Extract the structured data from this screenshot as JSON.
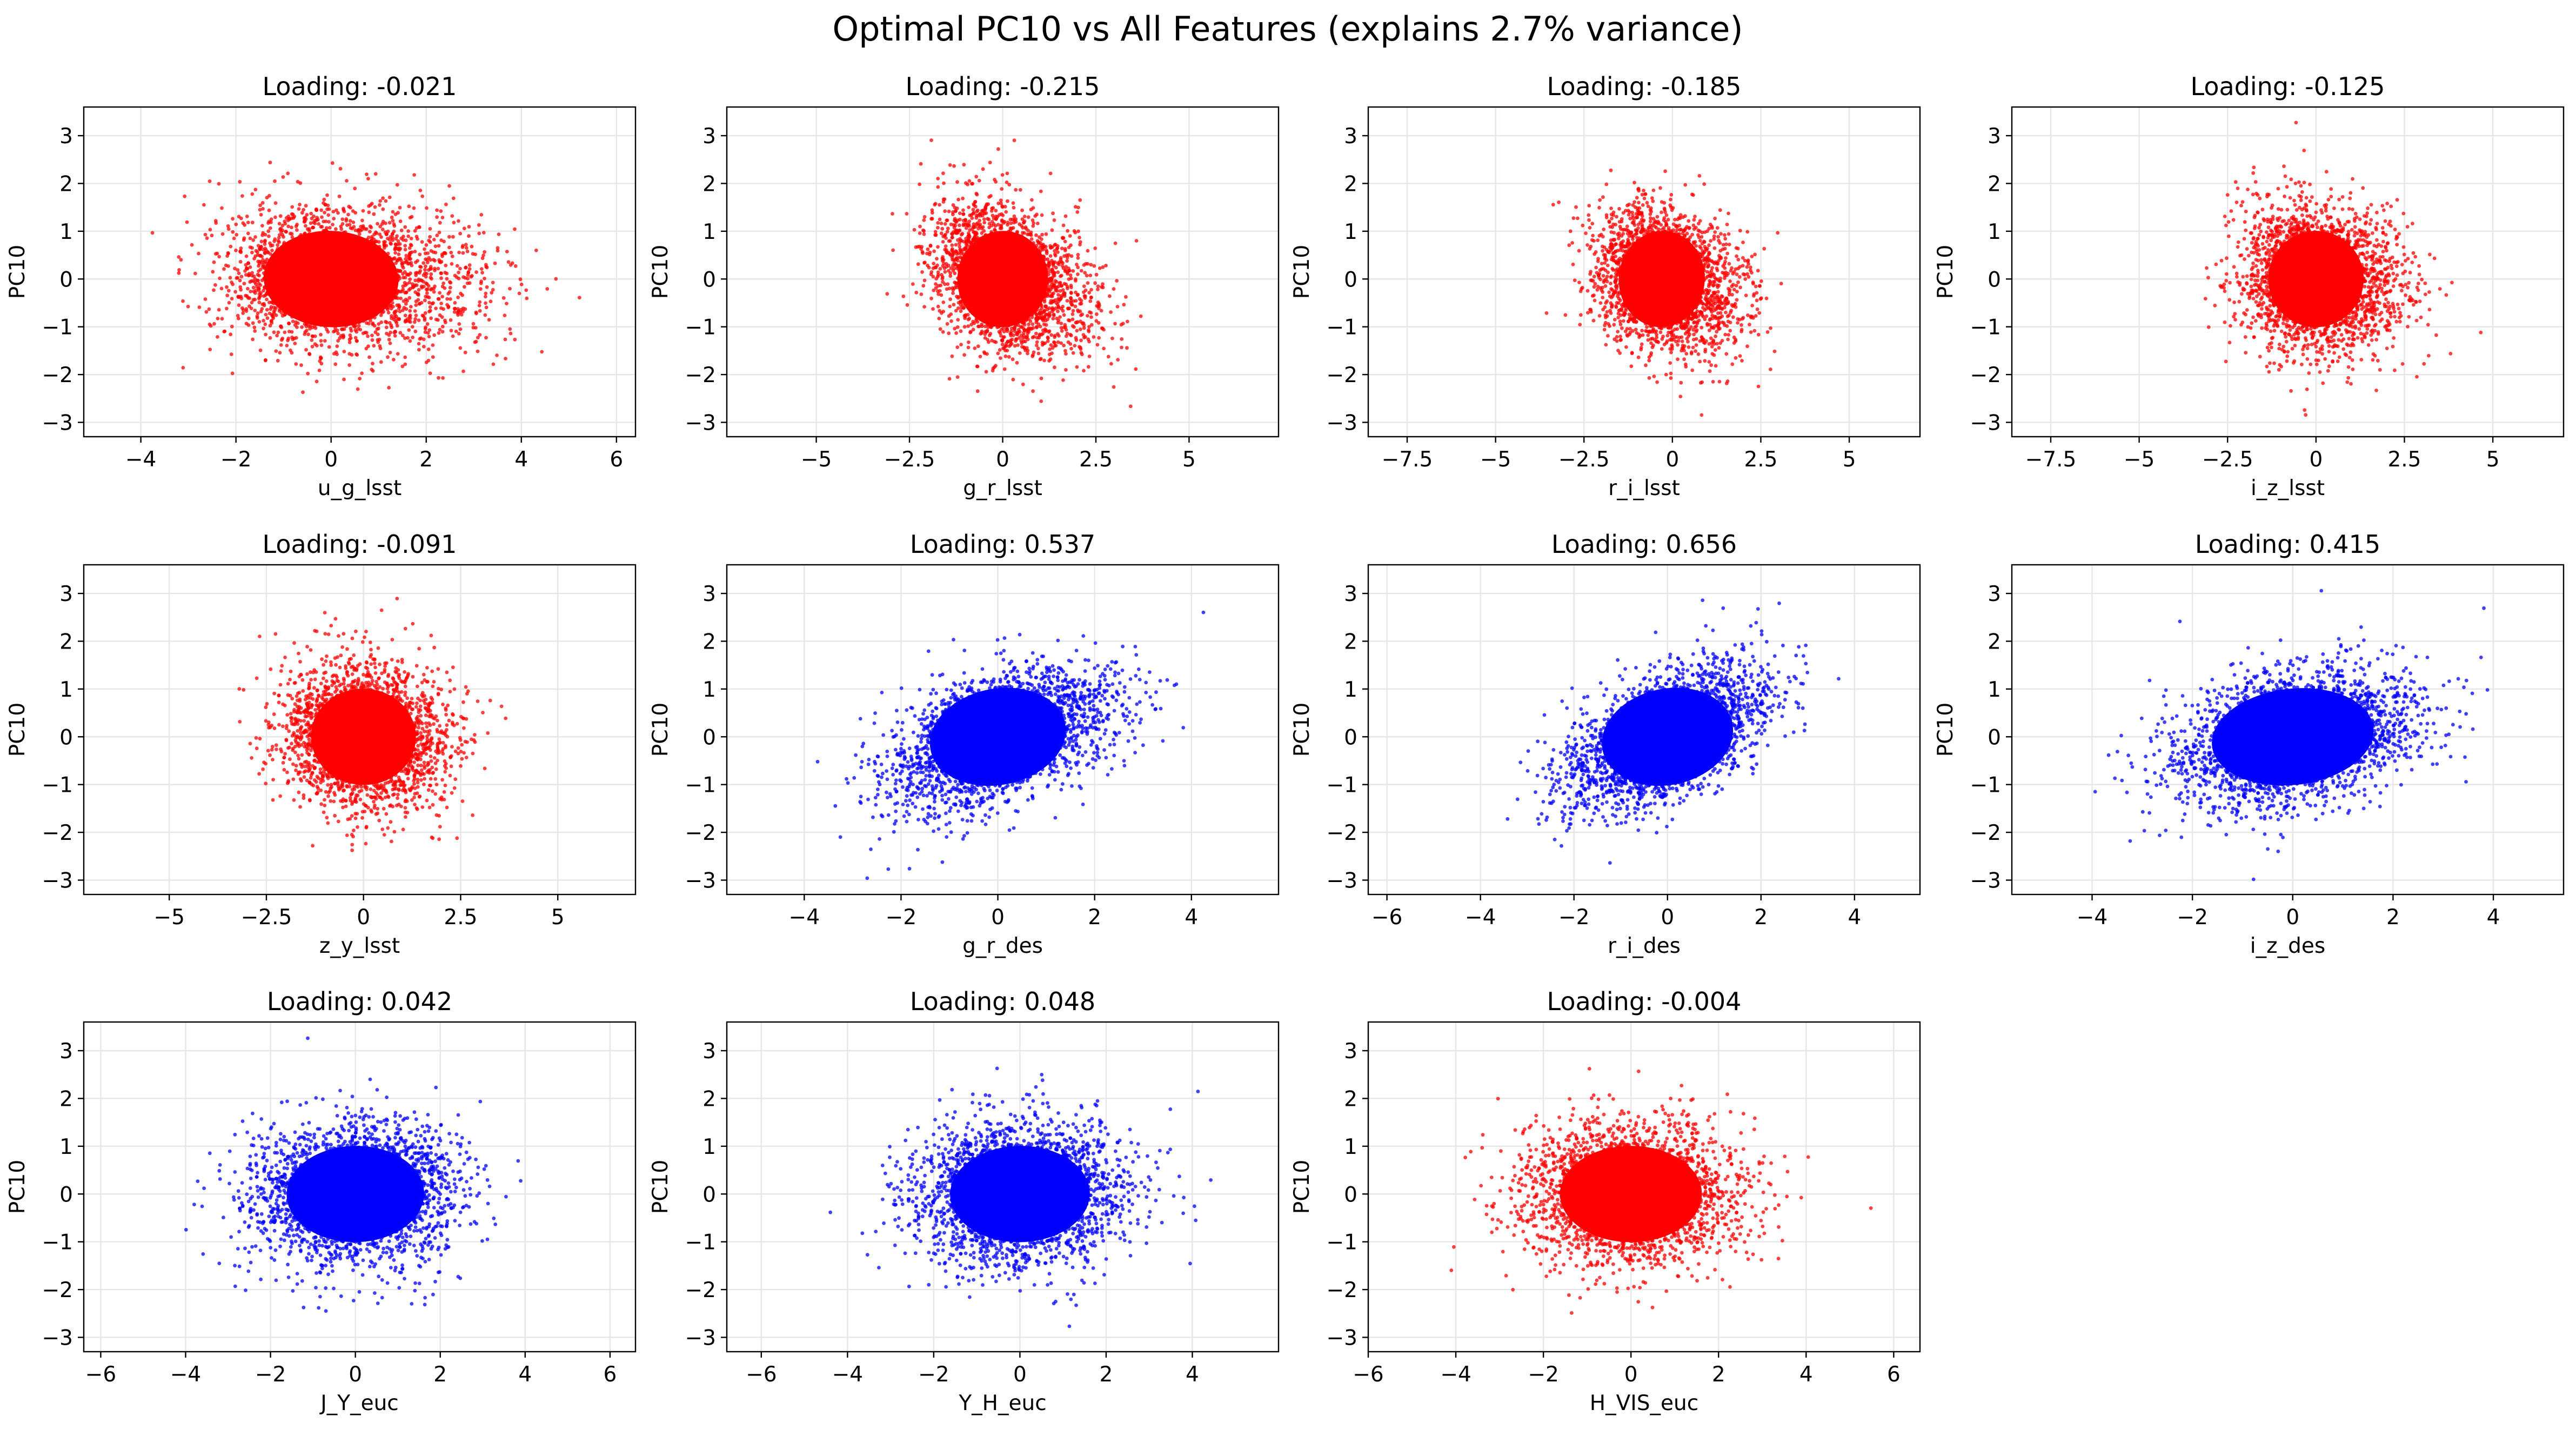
{
  "suptitle": "Optimal PC10 vs All Features (explains 2.7% variance)",
  "colors": {
    "negative": "#ff0000",
    "positive": "#0000ff"
  },
  "chart_data": [
    {
      "type": "scatter",
      "title": "Loading: -0.021",
      "xlabel": "u_g_lsst",
      "ylabel": "PC10",
      "xlim": [
        -5.2,
        6.4
      ],
      "ylim": [
        -3.3,
        3.6
      ],
      "xticks": [
        -4,
        -2,
        0,
        2,
        4,
        6
      ],
      "yticks": [
        -3,
        -2,
        -1,
        0,
        1,
        2,
        3
      ],
      "color": "red",
      "points": {
        "x_center": 0,
        "x_sd": 1.05,
        "x_skew": 0.5,
        "y_sd": 0.72,
        "corr": -0.12,
        "x_range": [
          -4.8,
          5.9
        ],
        "y_range": [
          -3.0,
          3.3
        ]
      },
      "grid": true
    },
    {
      "type": "scatter",
      "title": "Loading: -0.215",
      "xlabel": "g_r_lsst",
      "ylabel": "PC10",
      "xlim": [
        -7.4,
        7.4
      ],
      "ylim": [
        -3.3,
        3.6
      ],
      "xticks": [
        -7.5,
        -5.0,
        -2.5,
        0.0,
        2.5,
        5.0
      ],
      "yticks": [
        -3,
        -2,
        -1,
        0,
        1,
        2,
        3
      ],
      "color": "red",
      "points": {
        "x_center": 0,
        "x_sd": 0.9,
        "x_skew": 0.3,
        "y_sd": 0.72,
        "corr": -0.3,
        "x_range": [
          -6.8,
          6.8
        ],
        "y_range": [
          -3.0,
          3.3
        ]
      },
      "grid": true
    },
    {
      "type": "scatter",
      "title": "Loading: -0.185",
      "xlabel": "r_i_lsst",
      "ylabel": "PC10",
      "xlim": [
        -8.6,
        7.0
      ],
      "ylim": [
        -3.3,
        3.6
      ],
      "xticks": [
        -7.5,
        -5.0,
        -2.5,
        0.0,
        2.5,
        5.0
      ],
      "yticks": [
        -3,
        -2,
        -1,
        0,
        1,
        2,
        3
      ],
      "color": "red",
      "points": {
        "x_center": -0.3,
        "x_sd": 0.9,
        "x_skew": 0.2,
        "y_sd": 0.72,
        "corr": -0.25,
        "x_range": [
          -8.1,
          6.6
        ],
        "y_range": [
          -3.0,
          3.3
        ]
      },
      "grid": true
    },
    {
      "type": "scatter",
      "title": "Loading: -0.125",
      "xlabel": "i_z_lsst",
      "ylabel": "PC10",
      "xlim": [
        -8.6,
        7.0
      ],
      "ylim": [
        -3.3,
        3.6
      ],
      "xticks": [
        -7.5,
        -5.0,
        -2.5,
        0.0,
        2.5,
        5.0
      ],
      "yticks": [
        -3,
        -2,
        -1,
        0,
        1,
        2,
        3
      ],
      "color": "red",
      "points": {
        "x_center": 0,
        "x_sd": 1.0,
        "x_skew": 0.2,
        "y_sd": 0.72,
        "corr": -0.15,
        "x_range": [
          -8.1,
          6.6
        ],
        "y_range": [
          -3.0,
          3.3
        ]
      },
      "grid": true
    },
    {
      "type": "scatter",
      "title": "Loading: -0.091",
      "xlabel": "z_y_lsst",
      "ylabel": "PC10",
      "xlim": [
        -7.2,
        7.0
      ],
      "ylim": [
        -3.3,
        3.6
      ],
      "xticks": [
        -7.5,
        -5.0,
        -2.5,
        0.0,
        2.5,
        5.0
      ],
      "yticks": [
        -3,
        -2,
        -1,
        0,
        1,
        2,
        3
      ],
      "color": "red",
      "points": {
        "x_center": 0,
        "x_sd": 1.0,
        "x_skew": 0.1,
        "y_sd": 0.72,
        "corr": -0.1,
        "x_range": [
          -6.8,
          6.7
        ],
        "y_range": [
          -3.0,
          3.3
        ]
      },
      "grid": true
    },
    {
      "type": "scatter",
      "title": "Loading: 0.537",
      "xlabel": "g_r_des",
      "ylabel": "PC10",
      "xlim": [
        -5.6,
        5.8
      ],
      "ylim": [
        -3.3,
        3.6
      ],
      "xticks": [
        -4,
        -2,
        0,
        2,
        4
      ],
      "yticks": [
        -3,
        -2,
        -1,
        0,
        1,
        2,
        3
      ],
      "color": "blue",
      "points": {
        "x_center": 0,
        "x_sd": 1.05,
        "x_skew": 0.2,
        "y_sd": 0.72,
        "corr": 0.5,
        "x_range": [
          -5.2,
          5.4
        ],
        "y_range": [
          -3.0,
          3.3
        ]
      },
      "grid": true
    },
    {
      "type": "scatter",
      "title": "Loading: 0.656",
      "xlabel": "r_i_des",
      "ylabel": "PC10",
      "xlim": [
        -6.4,
        5.4
      ],
      "ylim": [
        -3.3,
        3.6
      ],
      "xticks": [
        -6,
        -4,
        -2,
        0,
        2,
        4
      ],
      "yticks": [
        -3,
        -2,
        -1,
        0,
        1,
        2,
        3
      ],
      "color": "blue",
      "points": {
        "x_center": 0,
        "x_sd": 1.05,
        "x_skew": 0.0,
        "y_sd": 0.72,
        "corr": 0.55,
        "x_range": [
          -6.0,
          5.0
        ],
        "y_range": [
          -3.0,
          3.3
        ]
      },
      "grid": true
    },
    {
      "type": "scatter",
      "title": "Loading: 0.415",
      "xlabel": "i_z_des",
      "ylabel": "PC10",
      "xlim": [
        -5.6,
        5.4
      ],
      "ylim": [
        -3.3,
        3.6
      ],
      "xticks": [
        -4,
        -2,
        0,
        2,
        4
      ],
      "yticks": [
        -3,
        -2,
        -1,
        0,
        1,
        2,
        3
      ],
      "color": "blue",
      "points": {
        "x_center": 0,
        "x_sd": 1.2,
        "x_skew": 0.0,
        "y_sd": 0.72,
        "corr": 0.3,
        "x_range": [
          -5.1,
          5.0
        ],
        "y_range": [
          -3.0,
          3.3
        ]
      },
      "grid": true
    },
    {
      "type": "scatter",
      "title": "Loading: 0.042",
      "xlabel": "J_Y_euc",
      "ylabel": "PC10",
      "xlim": [
        -6.4,
        6.6
      ],
      "ylim": [
        -3.3,
        3.6
      ],
      "xticks": [
        -6,
        -4,
        -2,
        0,
        2,
        4,
        6
      ],
      "yticks": [
        -3,
        -2,
        -1,
        0,
        1,
        2,
        3
      ],
      "color": "blue",
      "points": {
        "x_center": 0,
        "x_sd": 1.2,
        "x_skew": 0.0,
        "y_sd": 0.72,
        "corr": 0.04,
        "x_range": [
          -6.0,
          6.2
        ],
        "y_range": [
          -3.0,
          3.3
        ]
      },
      "grid": true
    },
    {
      "type": "scatter",
      "title": "Loading: 0.048",
      "xlabel": "Y_H_euc",
      "ylabel": "PC10",
      "xlim": [
        -6.8,
        6.0
      ],
      "ylim": [
        -3.3,
        3.6
      ],
      "xticks": [
        -6,
        -4,
        -2,
        0,
        2,
        4
      ],
      "yticks": [
        -3,
        -2,
        -1,
        0,
        1,
        2,
        3
      ],
      "color": "blue",
      "points": {
        "x_center": 0,
        "x_sd": 1.2,
        "x_skew": 0.0,
        "y_sd": 0.72,
        "corr": 0.04,
        "x_range": [
          -6.3,
          5.5
        ],
        "y_range": [
          -3.0,
          3.3
        ]
      },
      "grid": true
    },
    {
      "type": "scatter",
      "title": "Loading: -0.004",
      "xlabel": "H_VIS_euc",
      "ylabel": "PC10",
      "xlim": [
        -6.0,
        6.6
      ],
      "ylim": [
        -3.3,
        3.6
      ],
      "xticks": [
        -6,
        -4,
        -2,
        0,
        2,
        4,
        6
      ],
      "yticks": [
        -3,
        -2,
        -1,
        0,
        1,
        2,
        3
      ],
      "color": "red",
      "points": {
        "x_center": 0,
        "x_sd": 1.2,
        "x_skew": 0.0,
        "y_sd": 0.72,
        "corr": 0.0,
        "x_range": [
          -5.5,
          6.1
        ],
        "y_range": [
          -3.0,
          3.3
        ]
      },
      "grid": true
    }
  ]
}
